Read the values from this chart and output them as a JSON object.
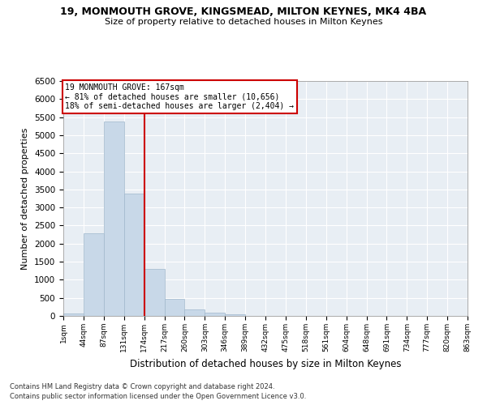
{
  "title1": "19, MONMOUTH GROVE, KINGSMEAD, MILTON KEYNES, MK4 4BA",
  "title2": "Size of property relative to detached houses in Milton Keynes",
  "xlabel": "Distribution of detached houses by size in Milton Keynes",
  "ylabel": "Number of detached properties",
  "bar_values": [
    75,
    2290,
    5380,
    3380,
    1310,
    480,
    185,
    80,
    40,
    0,
    0,
    0,
    0,
    0,
    0,
    0,
    0,
    0,
    0,
    0
  ],
  "bin_labels": [
    "1sqm",
    "44sqm",
    "87sqm",
    "131sqm",
    "174sqm",
    "217sqm",
    "260sqm",
    "303sqm",
    "346sqm",
    "389sqm",
    "432sqm",
    "475sqm",
    "518sqm",
    "561sqm",
    "604sqm",
    "648sqm",
    "691sqm",
    "734sqm",
    "777sqm",
    "820sqm",
    "863sqm"
  ],
  "bar_color": "#c8d8e8",
  "bar_edge_color": "#a0b8cc",
  "vline_x": 4,
  "vline_color": "#cc0000",
  "annotation_title": "19 MONMOUTH GROVE: 167sqm",
  "annotation_line1": "← 81% of detached houses are smaller (10,656)",
  "annotation_line2": "18% of semi-detached houses are larger (2,404) →",
  "annotation_box_color": "#ffffff",
  "annotation_border_color": "#cc0000",
  "ylim": [
    0,
    6500
  ],
  "yticks": [
    0,
    500,
    1000,
    1500,
    2000,
    2500,
    3000,
    3500,
    4000,
    4500,
    5000,
    5500,
    6000,
    6500
  ],
  "background_color": "#e8eef4",
  "footer1": "Contains HM Land Registry data © Crown copyright and database right 2024.",
  "footer2": "Contains public sector information licensed under the Open Government Licence v3.0."
}
